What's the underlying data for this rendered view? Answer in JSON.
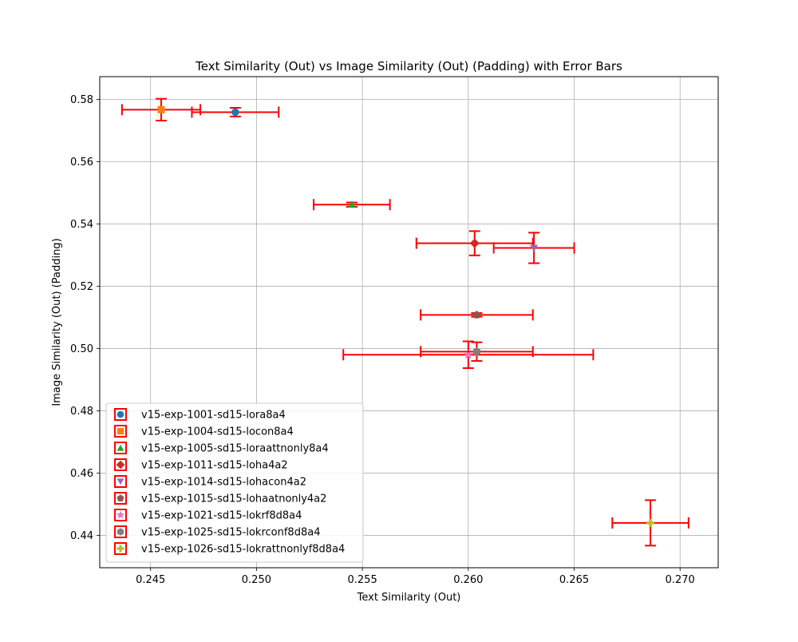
{
  "chart_data": {
    "type": "scatter",
    "title": "Text Similarity (Out) vs Image Similarity (Out) (Padding) with Error Bars",
    "xlabel": "Text Similarity (Out)",
    "ylabel": "Image Similarity (Out) (Padding)",
    "xlim": [
      0.2426,
      0.2718
    ],
    "ylim": [
      0.4296,
      0.5873
    ],
    "xticks": [
      0.245,
      0.25,
      0.255,
      0.26,
      0.265,
      0.27
    ],
    "xtick_labels": [
      "0.245",
      "0.250",
      "0.255",
      "0.260",
      "0.265",
      "0.270"
    ],
    "yticks": [
      0.44,
      0.46,
      0.48,
      0.5,
      0.52,
      0.54,
      0.56,
      0.58
    ],
    "ytick_labels": [
      "0.44",
      "0.46",
      "0.48",
      "0.50",
      "0.52",
      "0.54",
      "0.56",
      "0.58"
    ],
    "grid": true,
    "legend_position": "lower-left",
    "error_bar_color": "#ff0000",
    "series": [
      {
        "name": "v15-exp-1001-sd15-lora8a4",
        "color": "#1f77b4",
        "marker": "circle",
        "x": 0.249,
        "y": 0.5759,
        "xerr": 0.00205,
        "yerr": 0.0014
      },
      {
        "name": "v15-exp-1004-sd15-locon8a4",
        "color": "#ff7f0e",
        "marker": "square",
        "x": 0.2455,
        "y": 0.5767,
        "xerr": 0.00185,
        "yerr": 0.0035
      },
      {
        "name": "v15-exp-1005-sd15-loraattnonly8a4",
        "color": "#2ca02c",
        "marker": "triangle-up",
        "x": 0.2545,
        "y": 0.5462,
        "xerr": 0.0018,
        "yerr": 0.0007
      },
      {
        "name": "v15-exp-1011-sd15-loha4a2",
        "color": "#d62728",
        "marker": "diamond",
        "x": 0.2603,
        "y": 0.5338,
        "xerr": 0.00275,
        "yerr": 0.0039
      },
      {
        "name": "v15-exp-1014-sd15-lohacon4a2",
        "color": "#9467bd",
        "marker": "triangle-down",
        "x": 0.2631,
        "y": 0.5323,
        "xerr": 0.0019,
        "yerr": 0.0049
      },
      {
        "name": "v15-exp-1015-sd15-lohaatnonly4a2",
        "color": "#8c564b",
        "marker": "pentagon",
        "x": 0.2604,
        "y": 0.5108,
        "xerr": 0.00265,
        "yerr": 0.0006
      },
      {
        "name": "v15-exp-1021-sd15-lokrf8d8a4",
        "color": "#e377c2",
        "marker": "star",
        "x": 0.26,
        "y": 0.498,
        "xerr": 0.0059,
        "yerr": 0.0043
      },
      {
        "name": "v15-exp-1025-sd15-lokrconf8d8a4",
        "color": "#7f7f7f",
        "marker": "hexagon",
        "x": 0.2604,
        "y": 0.499,
        "xerr": 0.00265,
        "yerr": 0.003
      },
      {
        "name": "v15-exp-1026-sd15-lokrattnonlyf8d8a4",
        "color": "#bcbd22",
        "marker": "plus",
        "x": 0.2686,
        "y": 0.444,
        "xerr": 0.0018,
        "yerr": 0.0073
      }
    ]
  }
}
